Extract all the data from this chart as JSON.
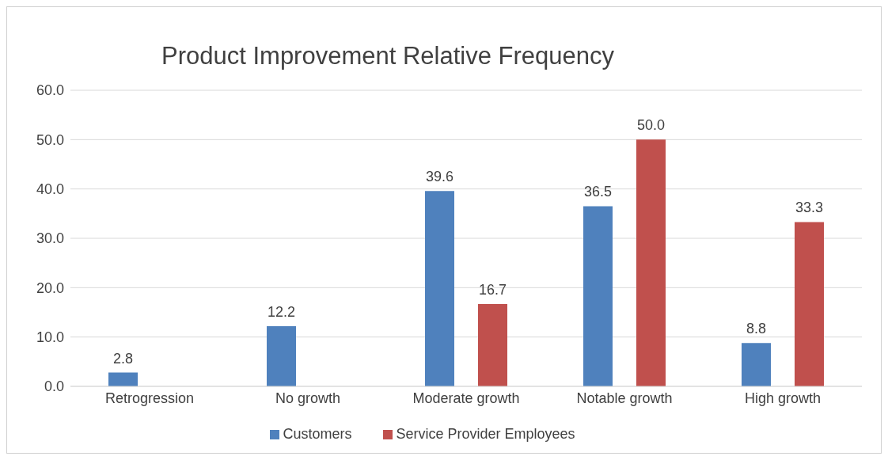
{
  "chart_data": {
    "type": "bar",
    "title": "Product Improvement Relative Frequency",
    "categories": [
      "Retrogression",
      "No growth",
      "Moderate growth",
      "Notable growth",
      "High growth"
    ],
    "series": [
      {
        "name": "Customers",
        "color": "#4f81bd",
        "values": [
          2.8,
          12.2,
          39.6,
          36.5,
          8.8
        ],
        "value_labels": [
          "2.8",
          "12.2",
          "39.6",
          "36.5",
          "8.8"
        ]
      },
      {
        "name": "Service Provider Employees",
        "color": "#c0504d",
        "values": [
          null,
          null,
          16.7,
          50.0,
          33.3
        ],
        "value_labels": [
          null,
          null,
          "16.7",
          "50.0",
          "33.3"
        ]
      }
    ],
    "ylim": [
      0,
      60
    ],
    "yticks": [
      {
        "value": 0,
        "label": "0.0"
      },
      {
        "value": 10,
        "label": "10.0"
      },
      {
        "value": 20,
        "label": "20.0"
      },
      {
        "value": 30,
        "label": "30.0"
      },
      {
        "value": 40,
        "label": "40.0"
      },
      {
        "value": 50,
        "label": "50.0"
      },
      {
        "value": 60,
        "label": "60.0"
      }
    ],
    "grid": "y",
    "legend": "bottom"
  }
}
